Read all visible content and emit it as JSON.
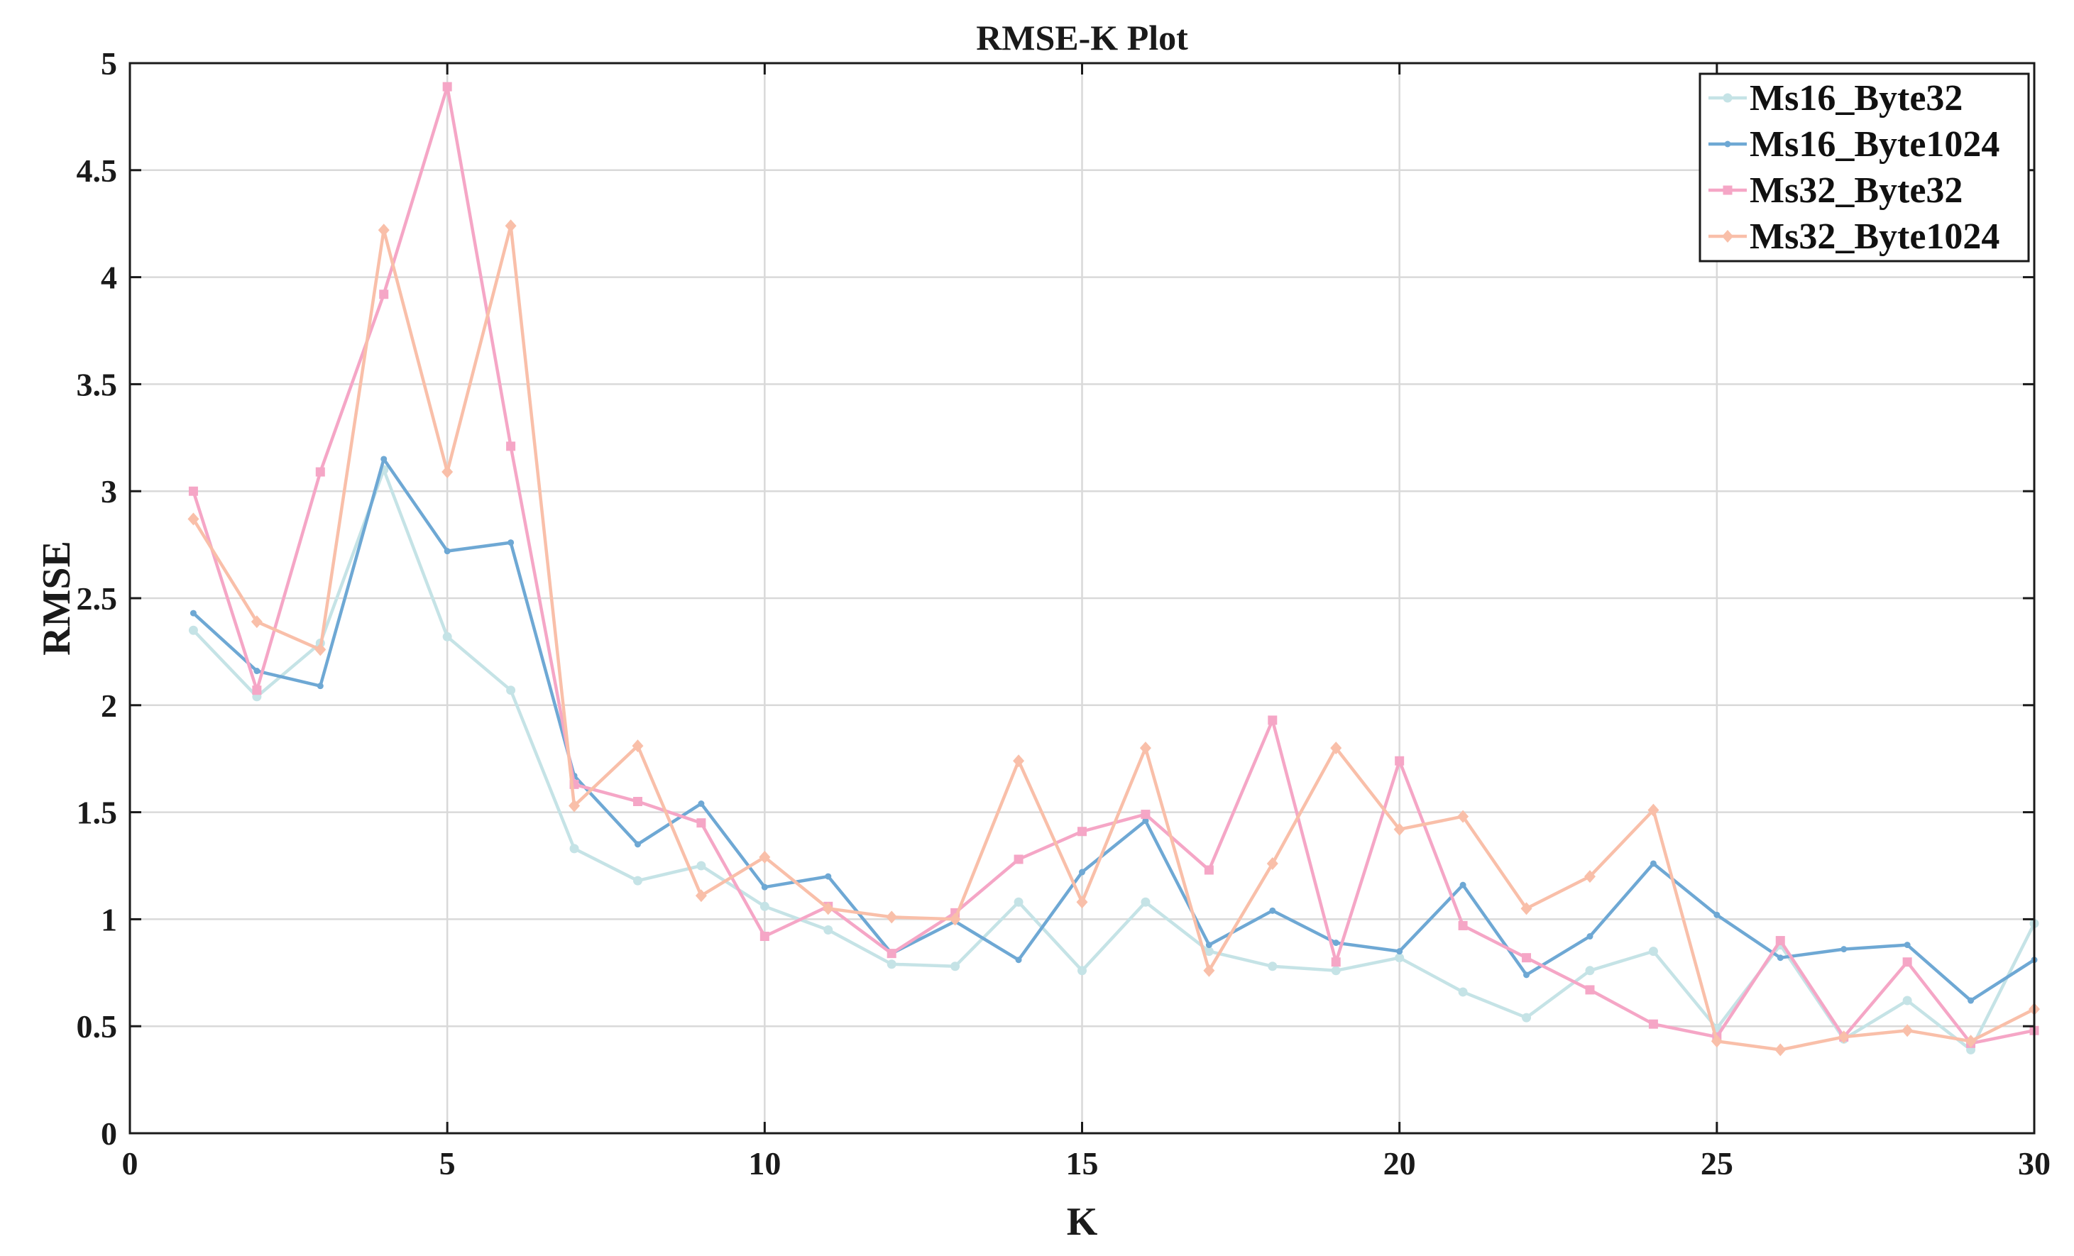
{
  "chart_data": {
    "type": "line",
    "title": "RMSE-K Plot",
    "xlabel": "K",
    "ylabel": "RMSE",
    "xlim": [
      0,
      30
    ],
    "ylim": [
      0,
      5
    ],
    "xticks": [
      "0",
      "5",
      "10",
      "15",
      "20",
      "25",
      "30"
    ],
    "yticks": [
      "0",
      "0.5",
      "1",
      "1.5",
      "2",
      "2.5",
      "3",
      "3.5",
      "4",
      "4.5",
      "5"
    ],
    "grid": true,
    "legend_position": "top-right",
    "x": [
      1,
      2,
      3,
      4,
      5,
      6,
      7,
      8,
      9,
      10,
      11,
      12,
      13,
      14,
      15,
      16,
      17,
      18,
      19,
      20,
      21,
      22,
      23,
      24,
      25,
      26,
      27,
      28,
      29,
      30
    ],
    "series": [
      {
        "name": "Ms16_Byte32",
        "color": "#c5e3e6",
        "marker": "circle",
        "values": [
          2.35,
          2.04,
          2.29,
          3.1,
          2.32,
          2.07,
          1.33,
          1.18,
          1.25,
          1.06,
          0.95,
          0.79,
          0.78,
          1.08,
          0.76,
          1.08,
          0.85,
          0.78,
          0.76,
          0.82,
          0.66,
          0.54,
          0.76,
          0.85,
          0.49,
          0.88,
          0.44,
          0.62,
          0.39,
          0.98
        ]
      },
      {
        "name": "Ms16_Byte1024",
        "color": "#6ea8d4",
        "marker": "dot",
        "values": [
          2.43,
          2.16,
          2.09,
          3.15,
          2.72,
          2.76,
          1.67,
          1.35,
          1.54,
          1.15,
          1.2,
          0.84,
          0.99,
          0.81,
          1.22,
          1.46,
          0.88,
          1.04,
          0.89,
          0.85,
          1.16,
          0.74,
          0.92,
          1.26,
          1.02,
          0.82,
          0.86,
          0.88,
          0.62,
          0.81
        ]
      },
      {
        "name": "Ms32_Byte32",
        "color": "#f5a6c6",
        "marker": "square",
        "values": [
          3.0,
          2.07,
          3.09,
          3.92,
          4.89,
          3.21,
          1.63,
          1.55,
          1.45,
          0.92,
          1.06,
          0.84,
          1.03,
          1.28,
          1.41,
          1.49,
          1.23,
          1.93,
          0.8,
          1.74,
          0.97,
          0.82,
          0.67,
          0.51,
          0.45,
          0.9,
          0.45,
          0.8,
          0.42,
          0.48
        ]
      },
      {
        "name": "Ms32_Byte1024",
        "color": "#f9bfa9",
        "marker": "diamond",
        "values": [
          2.87,
          2.39,
          2.26,
          4.22,
          3.09,
          4.24,
          1.53,
          1.81,
          1.11,
          1.29,
          1.05,
          1.01,
          1.0,
          1.74,
          1.08,
          1.8,
          0.76,
          1.26,
          1.8,
          1.42,
          1.48,
          1.05,
          1.2,
          1.51,
          0.43,
          0.39,
          0.45,
          0.48,
          0.43,
          0.58
        ]
      }
    ]
  }
}
